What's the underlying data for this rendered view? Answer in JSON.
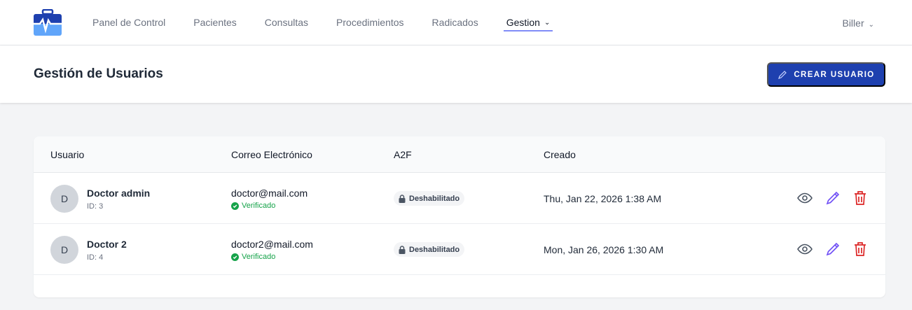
{
  "nav": {
    "items": [
      "Panel de Control",
      "Pacientes",
      "Consultas",
      "Procedimientos",
      "Radicados"
    ],
    "active": "Gestion",
    "user": "Biller"
  },
  "page": {
    "title": "Gestión de Usuarios",
    "create_label": "CREAR USUARIO"
  },
  "table": {
    "headers": [
      "Usuario",
      "Correo Electrónico",
      "A2F",
      "Creado"
    ],
    "rows": [
      {
        "initial": "D",
        "name": "Doctor admin",
        "id": "ID: 3",
        "email": "doctor@mail.com",
        "verified": "Verificado",
        "a2f": "Deshabilitado",
        "created": "Thu, Jan 22, 2026 1:38 AM"
      },
      {
        "initial": "D",
        "name": "Doctor 2",
        "id": "ID: 4",
        "email": "doctor2@mail.com",
        "verified": "Verificado",
        "a2f": "Deshabilitado",
        "created": "Mon, Jan 26, 2026 1:30 AM"
      }
    ]
  },
  "colors": {
    "primary": "#1e40af",
    "edit": "#6d4cf5",
    "delete": "#dc2626",
    "verified": "#16a34a"
  }
}
